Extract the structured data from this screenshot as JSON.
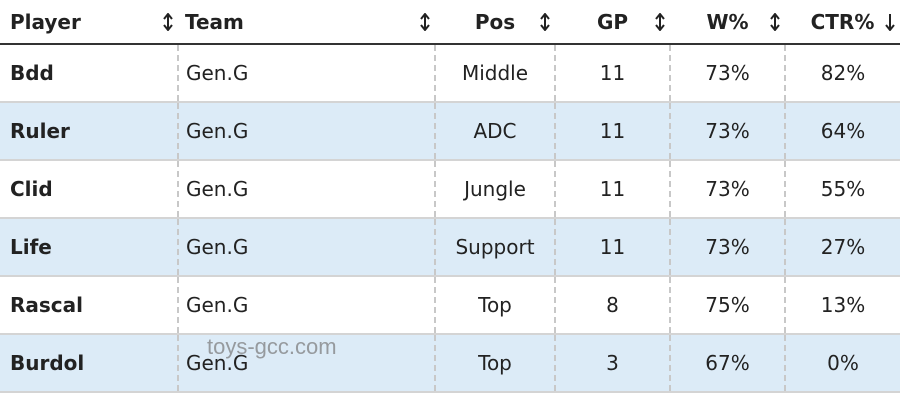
{
  "table": {
    "headers": [
      "Player",
      "Team",
      "Pos",
      "GP",
      "W%",
      "CTR%"
    ],
    "rows": [
      [
        "Bdd",
        "Gen.G",
        "Middle",
        "11",
        "73%",
        "82%"
      ],
      [
        "Ruler",
        "Gen.G",
        "ADC",
        "11",
        "73%",
        "64%"
      ],
      [
        "Clid",
        "Gen.G",
        "Jungle",
        "11",
        "73%",
        "55%"
      ],
      [
        "Life",
        "Gen.G",
        "Support",
        "11",
        "73%",
        "27%"
      ],
      [
        "Rascal",
        "Gen.G",
        "Top",
        "8",
        "75%",
        "13%"
      ],
      [
        "Burdol",
        "Gen.G",
        "Top",
        "3",
        "67%",
        "0%"
      ]
    ]
  },
  "watermark": "toys-gcc.com"
}
